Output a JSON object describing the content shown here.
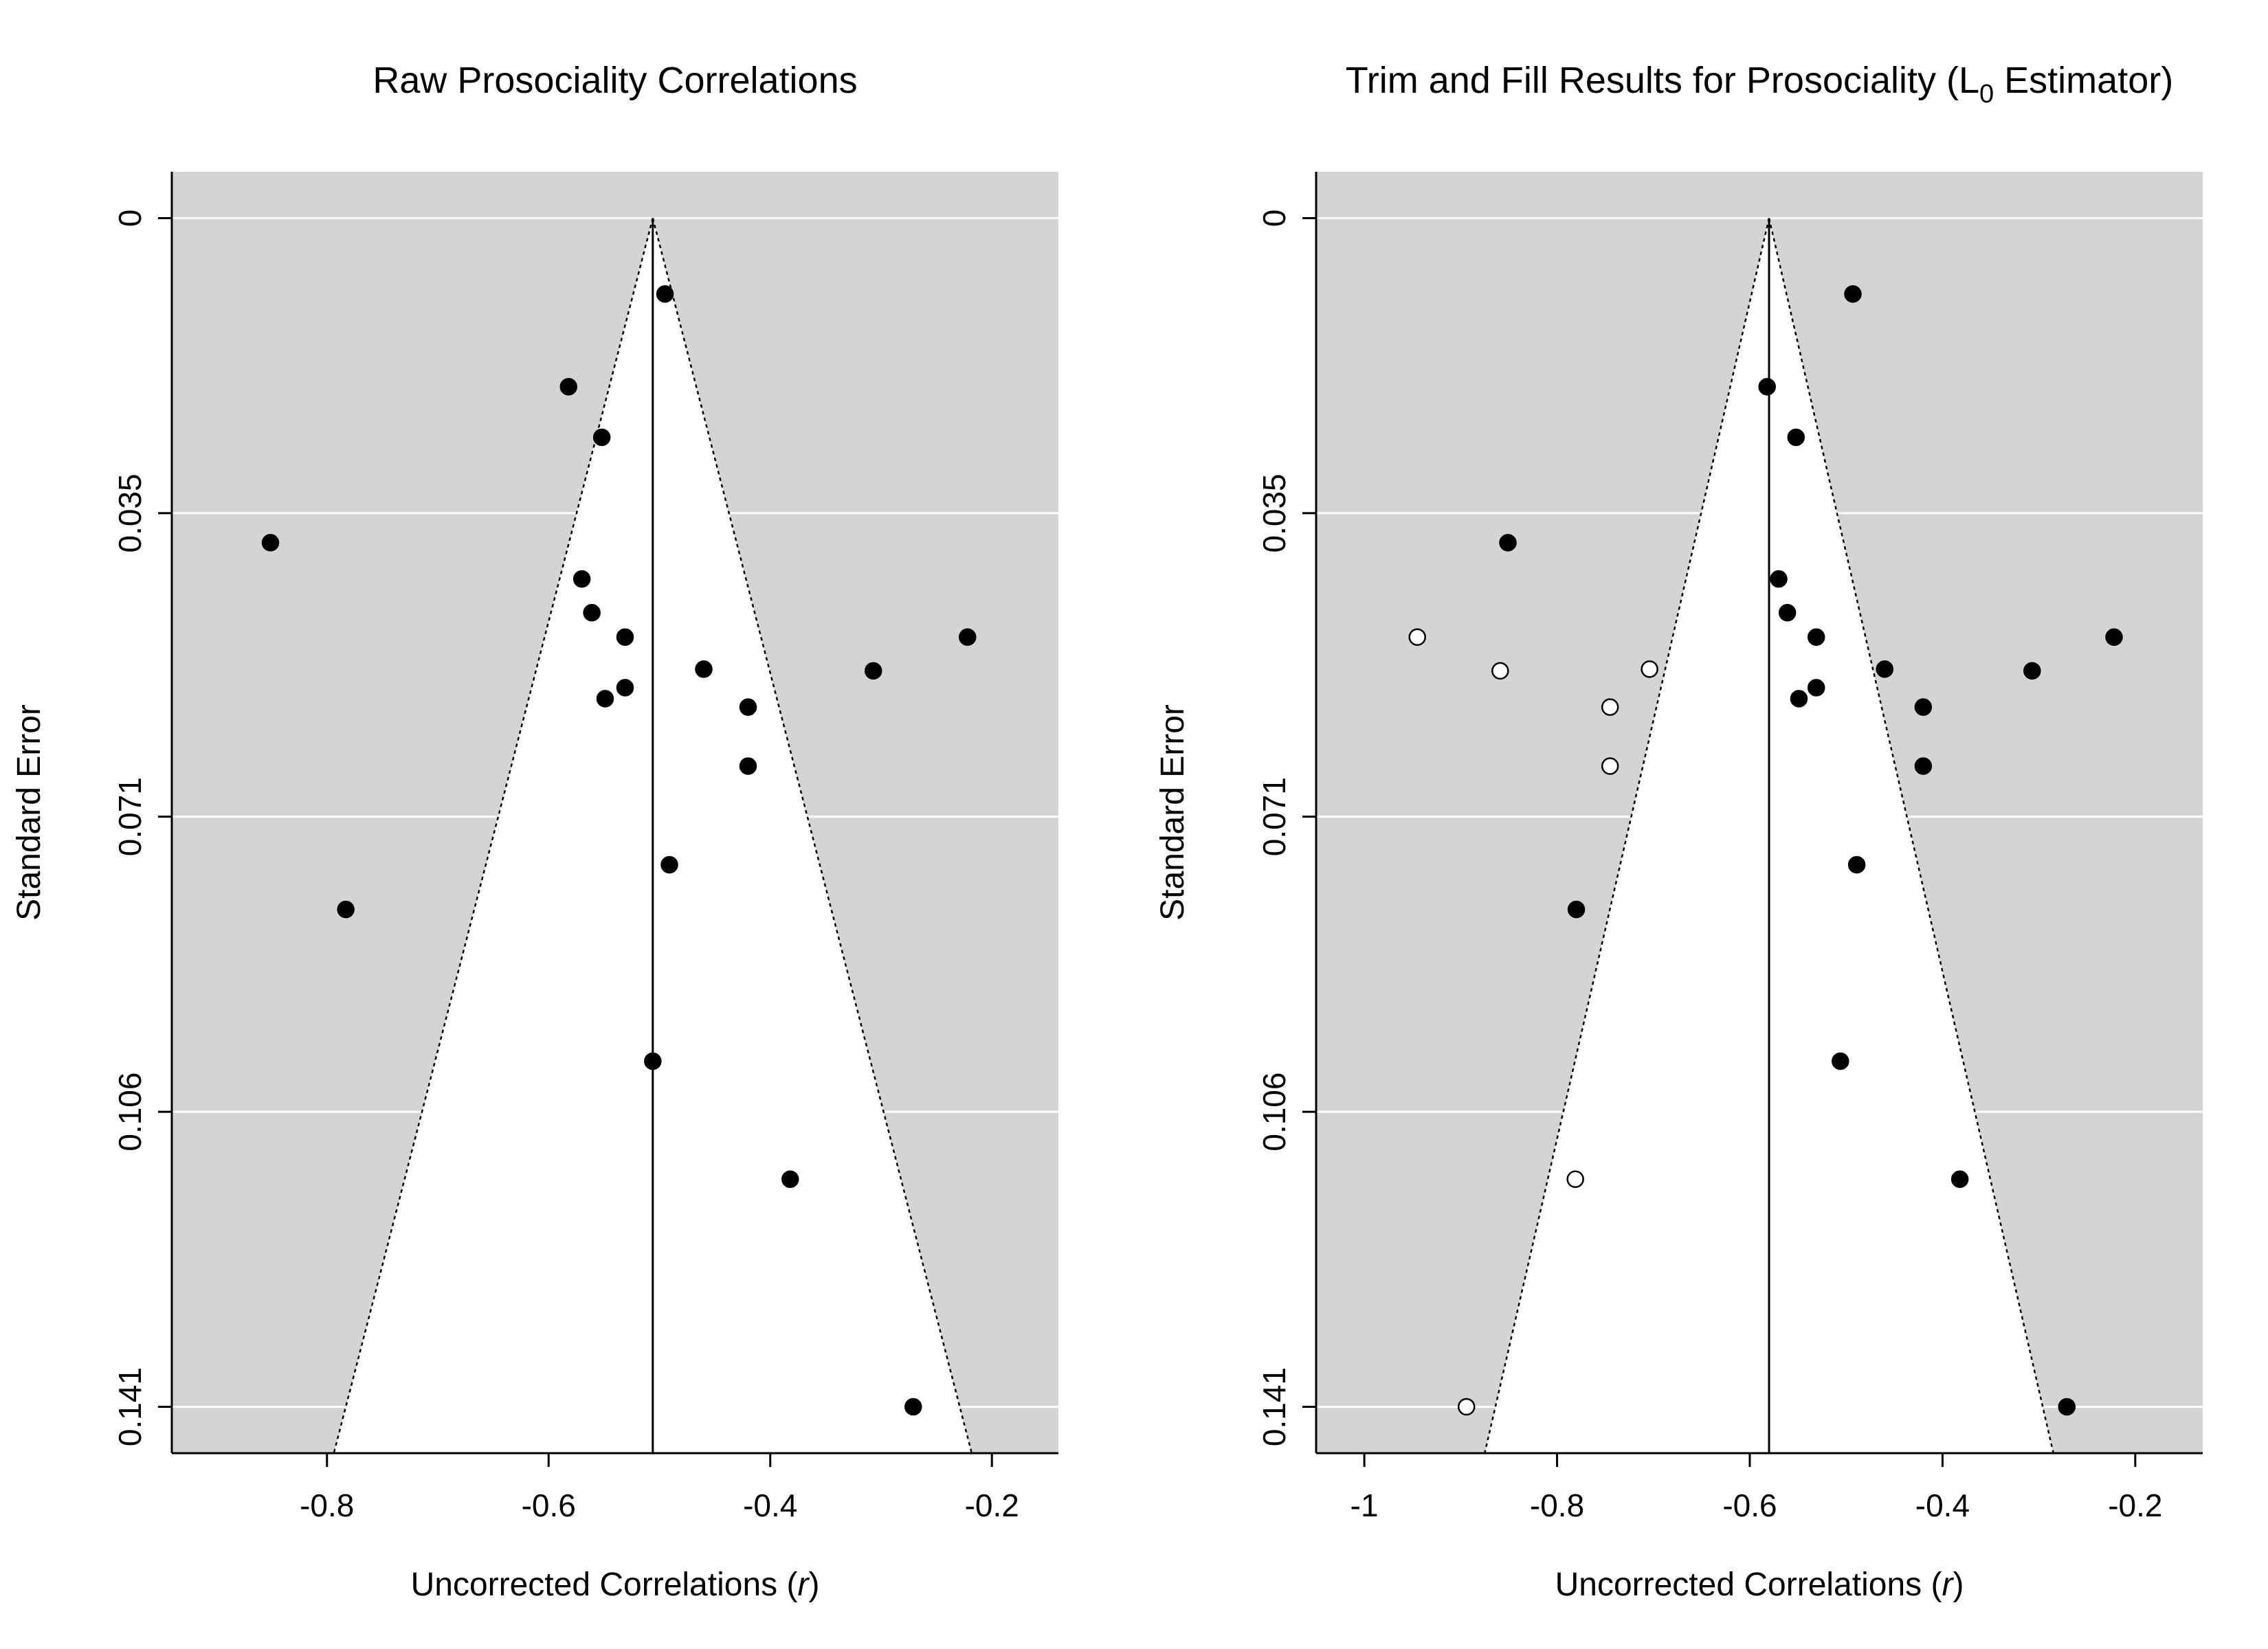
{
  "chart_data": [
    {
      "type": "scatter",
      "title": "Raw Prosociality Correlations",
      "xlabel": "Uncorrected Correlations (",
      "xlabel_var": "r",
      "xlabel_close": ")",
      "ylabel": "Standard Error",
      "xlim": [
        -0.94,
        -0.14
      ],
      "ylim": [
        0.1465,
        -0.0055
      ],
      "y_reversed": true,
      "xticks": [
        -0.8,
        -0.6,
        -0.4,
        -0.2
      ],
      "xtick_labels": [
        "-0.8",
        "-0.6",
        "-0.4",
        "-0.2"
      ],
      "yticks": [
        0,
        0.035,
        0.071,
        0.106,
        0.141
      ],
      "ytick_labels": [
        "0",
        "0.035",
        "0.071",
        "0.106",
        "0.141"
      ],
      "grid": "horizontal",
      "funnel_center": -0.506,
      "funnel_bottom_se": 0.141,
      "funnel_left_at_bottom": -0.783,
      "funnel_right_at_bottom": -0.229,
      "series": [
        {
          "marker": "filled",
          "x": [
            -0.495,
            -0.582,
            -0.552,
            -0.851,
            -0.57,
            -0.561,
            -0.531,
            -0.46,
            -0.307,
            -0.222,
            -0.531,
            -0.549,
            -0.42,
            -0.42,
            -0.491,
            -0.783,
            -0.506,
            -0.382,
            -0.271
          ],
          "y": [
            0.009,
            0.02,
            0.026,
            0.0385,
            0.0428,
            0.0468,
            0.0497,
            0.0535,
            0.0537,
            0.0497,
            0.0557,
            0.057,
            0.058,
            0.065,
            0.0767,
            0.082,
            0.1,
            0.114,
            0.141
          ]
        }
      ]
    },
    {
      "type": "scatter",
      "title": "Trim and Fill Results for Prosociality (L",
      "title_sub": "0",
      "title_end": " Estimator)",
      "xlabel": "Uncorrected Correlations (",
      "xlabel_var": "r",
      "xlabel_close": ")",
      "ylabel": "Standard Error",
      "xlim": [
        -1.05,
        -0.13
      ],
      "ylim": [
        0.1465,
        -0.0055
      ],
      "y_reversed": true,
      "xticks": [
        -1,
        -0.8,
        -0.6,
        -0.4,
        -0.2
      ],
      "xtick_labels": [
        "-1",
        "-0.8",
        "-0.6",
        "-0.4",
        "-0.2"
      ],
      "yticks": [
        0,
        0.035,
        0.071,
        0.106,
        0.141
      ],
      "ytick_labels": [
        "0",
        "0.035",
        "0.071",
        "0.106",
        "0.141"
      ],
      "grid": "horizontal",
      "funnel_center": -0.58,
      "funnel_bottom_se": 0.141,
      "funnel_left_at_bottom": -0.864,
      "funnel_right_at_bottom": -0.296,
      "series": [
        {
          "marker": "filled",
          "x": [
            -0.493,
            -0.582,
            -0.552,
            -0.851,
            -0.57,
            -0.561,
            -0.531,
            -0.46,
            -0.307,
            -0.222,
            -0.531,
            -0.549,
            -0.42,
            -0.42,
            -0.489,
            -0.78,
            -0.506,
            -0.382,
            -0.271
          ],
          "y": [
            0.009,
            0.02,
            0.026,
            0.0385,
            0.0428,
            0.0468,
            0.0497,
            0.0535,
            0.0537,
            0.0497,
            0.0557,
            0.057,
            0.058,
            0.065,
            0.0767,
            0.082,
            0.1,
            0.114,
            0.141
          ]
        },
        {
          "marker": "open",
          "x": [
            -0.945,
            -0.859,
            -0.704,
            -0.745,
            -0.745,
            -0.781,
            -0.894
          ],
          "y": [
            0.0497,
            0.0537,
            0.0535,
            0.058,
            0.065,
            0.114,
            0.141
          ]
        }
      ]
    }
  ]
}
